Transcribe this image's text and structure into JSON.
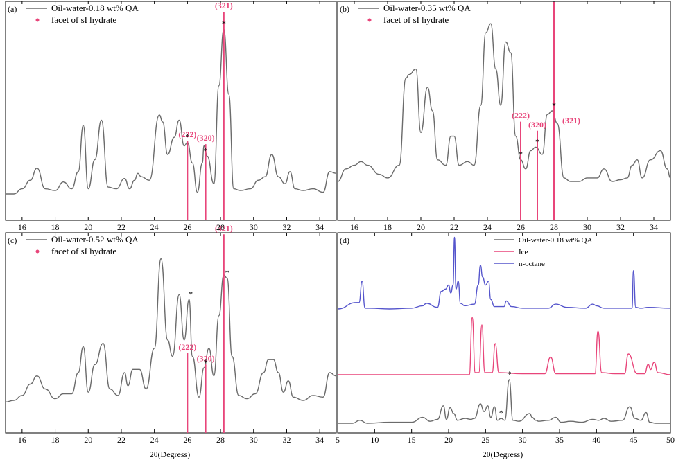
{
  "figure": {
    "x_axis_label": "2θ(Degress)"
  },
  "colors": {
    "xrd_trace": "#6b6b6b",
    "hydrate_marker": "#e8457a",
    "ice": "#e8457a",
    "n_octane": "#5555cc",
    "frame": "#000000"
  },
  "chart_data": [
    {
      "panel": "(a)",
      "type": "line",
      "xlim": [
        15,
        35
      ],
      "xticks": [
        16,
        18,
        20,
        22,
        24,
        26,
        28,
        30,
        32,
        34
      ],
      "legend": [
        "Oil-water-0.18 wt% QA",
        "facet of sI hydrate"
      ],
      "series": [
        {
          "name": "Oil-water-0.18 wt% QA",
          "x": [
            15.0,
            15.5,
            16.0,
            16.5,
            16.9,
            17.4,
            18.0,
            18.5,
            19.0,
            19.4,
            19.7,
            20.0,
            20.4,
            20.8,
            21.2,
            21.7,
            22.2,
            22.5,
            22.8,
            23.0,
            23.2,
            23.7,
            24.3,
            24.5,
            24.8,
            25.2,
            25.5,
            25.8,
            26.0,
            26.3,
            26.6,
            26.9,
            27.0,
            27.2,
            27.6,
            27.9,
            28.2,
            28.5,
            28.8,
            29.2,
            29.8,
            30.3,
            30.7,
            31.1,
            31.5,
            31.9,
            32.2,
            32.5,
            33.0,
            33.6,
            34.2,
            34.6,
            35.0
          ],
          "y": [
            0.02,
            0.02,
            0.05,
            0.1,
            0.17,
            0.05,
            0.04,
            0.09,
            0.05,
            0.15,
            0.42,
            0.05,
            0.22,
            0.45,
            0.06,
            0.05,
            0.11,
            0.05,
            0.1,
            0.14,
            0.12,
            0.1,
            0.48,
            0.44,
            0.25,
            0.35,
            0.45,
            0.3,
            0.32,
            0.2,
            0.03,
            0.2,
            0.3,
            0.24,
            0.08,
            0.65,
            0.98,
            0.6,
            0.05,
            0.04,
            0.05,
            0.1,
            0.12,
            0.25,
            0.12,
            0.08,
            0.15,
            0.05,
            0.04,
            0.05,
            0.03,
            0.15,
            0.14
          ]
        }
      ],
      "reference_lines": [
        {
          "x": 26.0,
          "height": 0.33,
          "label": "(222)"
        },
        {
          "x": 27.1,
          "height": 0.31,
          "label": "(320)"
        },
        {
          "x": 28.2,
          "height": 1.08,
          "label": "(321)"
        }
      ],
      "stars": [
        26.0,
        27.1,
        28.2
      ]
    },
    {
      "panel": "(b)",
      "type": "line",
      "xlim": [
        15,
        35
      ],
      "xticks": [
        16,
        18,
        20,
        22,
        24,
        26,
        28,
        30,
        32,
        34
      ],
      "legend": [
        "Oil-water-0.35 wt% QA",
        "facet of sI hydrate"
      ],
      "series": [
        {
          "name": "Oil-water-0.35 wt% QA",
          "x": [
            15.0,
            15.5,
            16.0,
            16.4,
            16.8,
            17.5,
            18.0,
            18.7,
            19.1,
            19.3,
            19.7,
            20.0,
            20.4,
            20.7,
            21.0,
            21.5,
            21.8,
            22.0,
            22.3,
            22.8,
            23.2,
            23.6,
            23.9,
            24.2,
            24.5,
            24.8,
            25.1,
            25.4,
            25.7,
            26.0,
            26.3,
            26.6,
            26.9,
            27.3,
            27.6,
            27.9,
            28.2,
            28.6,
            29.0,
            29.5,
            30.0,
            30.6,
            31.0,
            31.5,
            32.0,
            32.4,
            32.7,
            33.0,
            33.3,
            33.8,
            34.4,
            34.8,
            35.0
          ],
          "y": [
            0.03,
            0.1,
            0.12,
            0.14,
            0.12,
            0.07,
            0.05,
            0.12,
            0.6,
            0.62,
            0.65,
            0.3,
            0.55,
            0.42,
            0.15,
            0.12,
            0.28,
            0.28,
            0.12,
            0.14,
            0.12,
            0.45,
            0.85,
            0.9,
            0.65,
            0.45,
            0.8,
            0.74,
            0.28,
            0.15,
            0.1,
            0.2,
            0.22,
            0.18,
            0.4,
            0.42,
            0.35,
            0.05,
            0.03,
            0.03,
            0.05,
            0.05,
            0.1,
            0.03,
            0.04,
            0.05,
            0.12,
            0.15,
            0.05,
            0.15,
            0.2,
            0.1,
            0.05
          ]
        }
      ],
      "reference_lines": [
        {
          "x": 26.0,
          "height": 0.36,
          "label": "(222)"
        },
        {
          "x": 27.0,
          "height": 0.31,
          "label": "(320)"
        },
        {
          "x": 28.0,
          "height": 1.1,
          "label": "(321)"
        }
      ],
      "stars": [
        26.0,
        27.0,
        28.0
      ]
    },
    {
      "panel": "(c)",
      "type": "line",
      "xlim": [
        15,
        35
      ],
      "xticks": [
        16,
        18,
        20,
        22,
        24,
        26,
        28,
        30,
        32,
        34
      ],
      "legend": [
        "Oil-water-0.52 wt% QA",
        "facet of sI hydrate"
      ],
      "series": [
        {
          "name": "Oil-water-0.52 wt% QA",
          "x": [
            15.0,
            15.5,
            16.0,
            16.5,
            16.9,
            17.4,
            18.0,
            18.5,
            19.0,
            19.4,
            19.7,
            20.0,
            20.4,
            20.9,
            21.3,
            21.8,
            22.2,
            22.4,
            22.7,
            23.1,
            23.5,
            24.0,
            24.4,
            24.8,
            25.1,
            25.5,
            25.8,
            26.1,
            26.3,
            26.7,
            27.0,
            27.3,
            27.6,
            27.9,
            28.2,
            28.4,
            28.7,
            29.1,
            29.6,
            30.1,
            30.6,
            30.9,
            31.2,
            31.5,
            31.8,
            32.1,
            32.4,
            33.0,
            33.6,
            34.2,
            34.6,
            35.0
          ],
          "y": [
            0.02,
            0.03,
            0.06,
            0.13,
            0.18,
            0.1,
            0.04,
            0.07,
            0.07,
            0.2,
            0.36,
            0.08,
            0.25,
            0.38,
            0.1,
            0.06,
            0.2,
            0.12,
            0.22,
            0.22,
            0.1,
            0.35,
            0.9,
            0.4,
            0.3,
            0.68,
            0.4,
            0.65,
            0.3,
            0.05,
            0.23,
            0.35,
            0.18,
            0.55,
            0.8,
            0.78,
            0.3,
            0.06,
            0.04,
            0.07,
            0.2,
            0.28,
            0.28,
            0.2,
            0.08,
            0.15,
            0.05,
            0.03,
            0.06,
            0.05,
            0.2,
            0.18
          ]
        }
      ],
      "reference_lines": [
        {
          "x": 26.0,
          "height": 0.32,
          "label": "(222)"
        },
        {
          "x": 27.1,
          "height": 0.25,
          "label": "(320)"
        },
        {
          "x": 28.2,
          "height": 1.05,
          "label": "(321)"
        }
      ],
      "stars": [
        26.2,
        27.1,
        28.4
      ]
    },
    {
      "panel": "(d)",
      "type": "line",
      "xlim": [
        5,
        50
      ],
      "xticks": [
        5,
        10,
        15,
        20,
        25,
        30,
        35,
        40,
        45,
        50
      ],
      "legend": [
        "Oil-water-0.18 wt% QA",
        "Ice",
        "n-octane"
      ],
      "series": [
        {
          "name": "Oil-water-0.18 wt% QA",
          "x": [
            5.0,
            7.0,
            8.0,
            9.0,
            12.0,
            15.0,
            16.5,
            17.5,
            18.5,
            19.3,
            19.7,
            20.2,
            20.7,
            21.2,
            22.2,
            23.0,
            23.5,
            24.3,
            24.8,
            25.3,
            25.7,
            26.2,
            26.6,
            27.1,
            27.6,
            28.2,
            28.7,
            29.5,
            31.0,
            31.3,
            31.8,
            32.2,
            33.5,
            34.5,
            35.2,
            36.5,
            38.0,
            39.5,
            40.3,
            41.0,
            42.0,
            43.5,
            44.5,
            45.2,
            46.0,
            46.7,
            47.2,
            48.0,
            50.0
          ],
          "y": [
            0.0,
            0.0,
            0.03,
            0.0,
            0.01,
            0.01,
            0.06,
            0.02,
            0.04,
            0.18,
            0.04,
            0.16,
            0.1,
            0.03,
            0.05,
            0.04,
            0.05,
            0.2,
            0.12,
            0.18,
            0.06,
            0.17,
            0.03,
            0.05,
            0.03,
            0.45,
            0.03,
            0.02,
            0.1,
            0.06,
            0.03,
            0.02,
            0.03,
            0.06,
            0.01,
            0.02,
            0.01,
            0.04,
            0.03,
            0.05,
            0.02,
            0.03,
            0.17,
            0.05,
            0.03,
            0.11,
            0.01,
            0.0,
            0.0
          ]
        },
        {
          "name": "Ice",
          "x": [
            5.0,
            15.0,
            20.0,
            22.8,
            23.2,
            23.6,
            24.1,
            24.5,
            24.9,
            25.4,
            25.9,
            26.3,
            26.8,
            30.0,
            33.0,
            33.8,
            34.5,
            38.0,
            39.8,
            40.2,
            40.7,
            42.5,
            43.8,
            44.3,
            45.5,
            46.5,
            47.0,
            47.3,
            47.8,
            48.3,
            50.0
          ],
          "y": [
            0.0,
            0.0,
            0.0,
            0.0,
            0.55,
            0.02,
            0.02,
            0.48,
            0.02,
            0.02,
            0.02,
            0.3,
            0.02,
            0.01,
            0.01,
            0.17,
            0.01,
            0.01,
            0.01,
            0.42,
            0.02,
            0.01,
            0.01,
            0.2,
            0.01,
            0.01,
            0.1,
            0.05,
            0.12,
            0.02,
            0.0
          ]
        },
        {
          "name": "n-octane",
          "x": [
            5.0,
            7.5,
            7.9,
            8.3,
            8.7,
            9.3,
            12.0,
            15.0,
            16.5,
            17.0,
            18.5,
            19.0,
            19.6,
            20.0,
            20.3,
            20.6,
            20.8,
            21.0,
            21.3,
            21.6,
            22.2,
            23.5,
            24.0,
            24.3,
            24.6,
            25.0,
            25.4,
            25.7,
            26.2,
            27.5,
            27.8,
            28.5,
            30.0,
            33.5,
            34.5,
            36.0,
            38.5,
            39.5,
            40.0,
            41.0,
            43.5,
            44.8,
            45.0,
            45.3,
            46.0,
            47.0,
            50.0
          ],
          "y": [
            0.0,
            0.08,
            0.08,
            0.35,
            0.01,
            0.01,
            0.0,
            0.01,
            0.04,
            0.07,
            0.02,
            0.22,
            0.25,
            0.3,
            0.2,
            0.3,
            0.9,
            0.25,
            0.35,
            0.07,
            0.04,
            0.06,
            0.3,
            0.55,
            0.4,
            0.3,
            0.35,
            0.12,
            0.03,
            0.03,
            0.1,
            0.03,
            0.01,
            0.01,
            0.06,
            0.02,
            0.01,
            0.06,
            0.04,
            0.01,
            0.01,
            0.01,
            0.48,
            0.02,
            0.01,
            0.02,
            0.01
          ]
        }
      ],
      "stars": [
        27.1,
        28.2
      ]
    }
  ]
}
